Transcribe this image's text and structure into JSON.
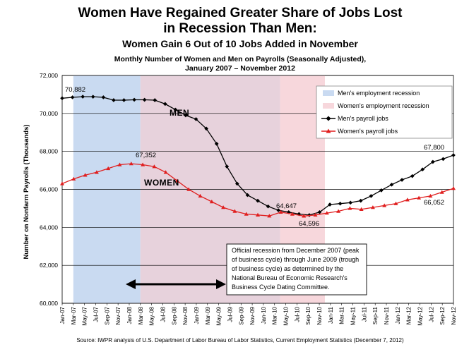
{
  "chart_data": {
    "type": "line",
    "title_line1": "Women Have Regained Greater Share of Jobs Lost",
    "title_line2": "in Recession Than Men:",
    "subtitle": "Women Gain 6 Out of 10 Jobs Added in November",
    "chart_title_line1": "Monthly Number of Women and Men on Payrolls (Seasonally Adjusted),",
    "chart_title_line2": "January 2007 – November 2012",
    "ylabel": "Number on Nonfarm Payrolls (Thousands)",
    "ylim": [
      60000,
      72000
    ],
    "yticks": [
      "60,000",
      "62,000",
      "64,000",
      "66,000",
      "68,000",
      "70,000",
      "72,000"
    ],
    "xticks": [
      "Jan-07",
      "Mar-07",
      "May-07",
      "Jul-07",
      "Sep-07",
      "Nov-07",
      "Jan-08",
      "Mar-08",
      "May-08",
      "Jul-08",
      "Sep-08",
      "Nov-08",
      "Jan-09",
      "Mar-09",
      "May-09",
      "Jul-09",
      "Sep-09",
      "Nov-09",
      "Jan-10",
      "Mar-10",
      "May-10",
      "Jul-10",
      "Sep-10",
      "Nov-10",
      "Jan-11",
      "Mar-11",
      "May-11",
      "Jul-11",
      "Sep-11",
      "Nov-11",
      "Jan-12",
      "Mar-12",
      "May-12",
      "Jul-12",
      "Sep-12",
      "Nov-12"
    ],
    "series": [
      {
        "name": "Men's payroll jobs",
        "color": "#000000",
        "values": [
          70800,
          70850,
          70882,
          70880,
          70850,
          70700,
          70700,
          70720,
          70720,
          70700,
          70500,
          70200,
          69900,
          69700,
          69200,
          68400,
          67200,
          66300,
          65700,
          65400,
          65100,
          64900,
          64800,
          64700,
          64647,
          64800,
          65200,
          65250,
          65300,
          65400,
          65650,
          65950,
          66250,
          66500,
          66700,
          67050,
          67450,
          67600,
          67800
        ]
      },
      {
        "name": "Women's payroll jobs",
        "color": "#e01e1e",
        "values": [
          66300,
          66550,
          66750,
          66900,
          67100,
          67300,
          67352,
          67300,
          67200,
          66900,
          66450,
          66000,
          65650,
          65350,
          65050,
          64850,
          64700,
          64650,
          64600,
          64800,
          64700,
          64596,
          64650,
          64750,
          64850,
          65000,
          64950,
          65050,
          65150,
          65250,
          65450,
          65550,
          65650,
          65850,
          66052
        ]
      }
    ],
    "annotations": {
      "men_peak": "70,882",
      "women_peak": "67,352",
      "men_trough": "64,647",
      "women_trough": "64,596",
      "men_last": "67,800",
      "women_last": "66,052",
      "men_label": "MEN",
      "women_label": "WOMEN"
    },
    "legend": [
      {
        "label": "Men's employment recession",
        "color": "#c9daf1"
      },
      {
        "label": "Women's employment recession",
        "color": "#f7d7dc"
      },
      {
        "label": "Men's payroll jobs",
        "color": "#000000"
      },
      {
        "label": "Women's payroll jobs",
        "color": "#e01e1e"
      }
    ],
    "note": [
      "Official recession from December 2007 (peak",
      "of business cycle) through June 2009 (trough",
      "of business cycle) as determined by the",
      "National Bureau of Economic Research's",
      "Business Cycle Dating Committee."
    ],
    "source": "Source: IWPR analysis of U.S. Department of Labor Bureau of Labor Statistics, Current Employment Statistics (December 7, 2012)"
  }
}
